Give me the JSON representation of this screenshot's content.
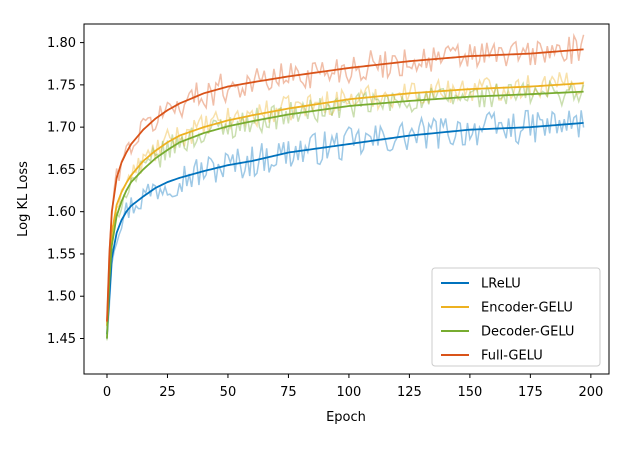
{
  "chart_data": {
    "type": "line",
    "title": "",
    "xlabel": "Epoch",
    "ylabel": "Log KL Loss",
    "xlim": [
      -9.5,
      207.5
    ],
    "ylim": [
      1.408,
      1.822
    ],
    "xticks": [
      0,
      25,
      50,
      75,
      100,
      125,
      150,
      175,
      200
    ],
    "yticks": [
      1.45,
      1.5,
      1.55,
      1.6,
      1.65,
      1.7,
      1.75,
      1.8
    ],
    "ytick_labels": [
      "1.45",
      "1.50",
      "1.55",
      "1.60",
      "1.65",
      "1.70",
      "1.75",
      "1.80"
    ],
    "grid": false,
    "legend_position": "lower-right",
    "x": [
      0,
      1,
      2,
      4,
      6,
      8,
      10,
      15,
      20,
      25,
      30,
      40,
      50,
      60,
      75,
      100,
      125,
      150,
      175,
      197
    ],
    "series": [
      {
        "name": "LReLU",
        "color": "#0072BD",
        "smoothed": [
          1.455,
          1.5,
          1.545,
          1.575,
          1.59,
          1.6,
          1.607,
          1.618,
          1.628,
          1.635,
          1.64,
          1.648,
          1.655,
          1.66,
          1.67,
          1.68,
          1.69,
          1.697,
          1.7,
          1.705
        ],
        "noise_amplitude": 0.02
      },
      {
        "name": "Encoder-GELU",
        "color": "#EDB120",
        "smoothed": [
          1.465,
          1.53,
          1.575,
          1.608,
          1.623,
          1.634,
          1.643,
          1.66,
          1.672,
          1.682,
          1.69,
          1.7,
          1.708,
          1.714,
          1.722,
          1.733,
          1.74,
          1.745,
          1.748,
          1.752
        ],
        "noise_amplitude": 0.015
      },
      {
        "name": "Decoder-GELU",
        "color": "#77AC30",
        "smoothed": [
          1.45,
          1.52,
          1.56,
          1.595,
          1.612,
          1.625,
          1.635,
          1.65,
          1.663,
          1.673,
          1.682,
          1.693,
          1.701,
          1.707,
          1.715,
          1.725,
          1.731,
          1.736,
          1.739,
          1.742
        ],
        "noise_amplitude": 0.015
      },
      {
        "name": "Full-GELU",
        "color": "#D95319",
        "smoothed": [
          1.47,
          1.55,
          1.6,
          1.64,
          1.658,
          1.67,
          1.68,
          1.697,
          1.71,
          1.72,
          1.728,
          1.74,
          1.748,
          1.753,
          1.76,
          1.77,
          1.778,
          1.784,
          1.787,
          1.792
        ],
        "noise_amplitude": 0.018
      }
    ]
  }
}
